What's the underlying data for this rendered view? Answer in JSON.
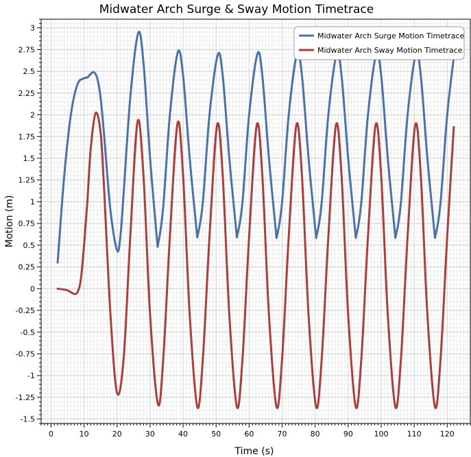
{
  "chart_data": {
    "type": "line",
    "title": "Midwater Arch Surge & Sway Motion Timetrace",
    "xlabel": "Time (s)",
    "ylabel": "Motion (m)",
    "xlim": [
      -3,
      127
    ],
    "ylim": [
      -1.55,
      3.1
    ],
    "xticks": [
      0,
      10,
      20,
      30,
      40,
      50,
      60,
      70,
      80,
      90,
      100,
      110,
      120
    ],
    "yticks": [
      -1.5,
      -1.25,
      -1,
      -0.75,
      -0.5,
      -0.25,
      0,
      0.25,
      0.5,
      0.75,
      1,
      1.25,
      1.5,
      1.75,
      2,
      2.25,
      2.5,
      2.75,
      3
    ],
    "ytick_labels": [
      "-1.5",
      "-1.25",
      "-1",
      "-0.75",
      "-0.5",
      "-0.25",
      "0",
      "0.25",
      "0.5",
      "0.75",
      "1",
      "1.25",
      "1.5",
      "1.75",
      "2",
      "2.25",
      "2.5",
      "2.75",
      "3"
    ],
    "grid": true,
    "legend_position": "top-right",
    "series": [
      {
        "name": "Midwater Arch Surge Motion Timetrace",
        "color": "#4a72a8",
        "x": [
          2,
          4,
          6,
          8,
          10,
          11,
          12,
          13,
          14,
          15,
          16,
          18,
          20,
          21,
          22,
          24,
          26.4,
          28,
          30,
          32,
          32.5,
          34,
          36,
          38.4,
          40,
          42,
          44,
          44.5,
          46,
          48,
          50.5,
          52,
          54,
          56,
          56.5,
          58,
          60,
          62.5,
          64,
          66,
          68,
          68.5,
          70,
          72,
          74.5,
          76,
          78,
          80,
          80.5,
          82,
          84,
          86.5,
          88,
          90,
          92,
          92.5,
          94,
          96,
          98.5,
          100,
          102,
          104,
          104.5,
          106,
          108,
          110.5,
          112,
          114,
          116,
          116.5,
          118,
          120,
          122
        ],
        "y": [
          0.3,
          1.3,
          2.0,
          2.35,
          2.42,
          2.43,
          2.47,
          2.49,
          2.42,
          2.2,
          1.8,
          0.9,
          0.44,
          0.6,
          1.1,
          2.2,
          2.94,
          2.6,
          1.5,
          0.6,
          0.53,
          0.95,
          2.0,
          2.72,
          2.45,
          1.5,
          0.7,
          0.63,
          1.0,
          2.0,
          2.69,
          2.45,
          1.5,
          0.7,
          0.63,
          1.0,
          2.0,
          2.7,
          2.45,
          1.5,
          0.7,
          0.62,
          1.0,
          2.0,
          2.7,
          2.45,
          1.5,
          0.7,
          0.62,
          1.0,
          2.0,
          2.7,
          2.45,
          1.5,
          0.7,
          0.62,
          1.0,
          2.0,
          2.7,
          2.45,
          1.5,
          0.7,
          0.62,
          1.0,
          2.0,
          2.7,
          2.45,
          1.5,
          0.7,
          0.62,
          1.0,
          2.0,
          2.66
        ]
      },
      {
        "name": "Midwater Arch Sway Motion Timetrace",
        "color": "#a83f3f",
        "x": [
          2,
          4,
          5,
          6,
          7,
          8,
          9,
          10,
          11,
          12,
          13.5,
          15,
          16,
          18,
          20,
          22,
          24,
          26.2,
          28,
          30,
          32.4,
          34,
          36,
          38.3,
          40,
          42,
          44.3,
          46,
          48,
          50.3,
          52,
          54,
          56.3,
          58,
          60,
          62.3,
          64,
          66,
          68.3,
          70,
          72,
          74.3,
          76,
          78,
          80.3,
          82,
          84,
          86.3,
          88,
          90,
          92.3,
          94,
          96,
          98.3,
          100,
          102,
          104.3,
          106,
          108,
          110.3,
          112,
          114,
          116.3,
          118,
          120,
          122
        ],
        "y": [
          0.0,
          -0.01,
          -0.02,
          -0.04,
          -0.06,
          -0.04,
          0.1,
          0.5,
          1.0,
          1.6,
          2.02,
          1.8,
          1.2,
          -0.3,
          -1.2,
          -0.8,
          0.6,
          1.92,
          1.3,
          -0.3,
          -1.33,
          -0.8,
          0.6,
          1.9,
          1.3,
          -0.3,
          -1.36,
          -0.8,
          0.6,
          1.88,
          1.3,
          -0.3,
          -1.36,
          -0.8,
          0.6,
          1.88,
          1.3,
          -0.3,
          -1.36,
          -0.8,
          0.6,
          1.88,
          1.3,
          -0.3,
          -1.36,
          -0.8,
          0.6,
          1.88,
          1.3,
          -0.3,
          -1.36,
          -0.8,
          0.6,
          1.88,
          1.3,
          -0.3,
          -1.36,
          -0.8,
          0.6,
          1.88,
          1.3,
          -0.3,
          -1.36,
          -0.8,
          0.6,
          1.86
        ]
      }
    ]
  }
}
